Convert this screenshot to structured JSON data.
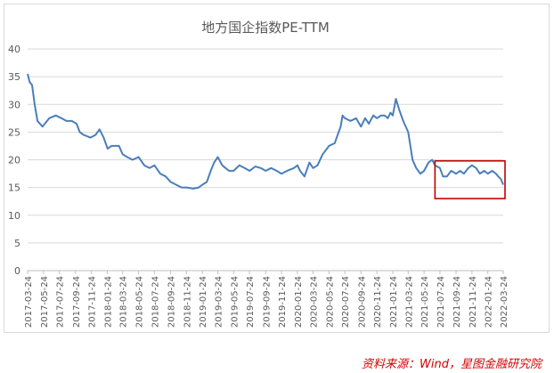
{
  "chart_data": {
    "type": "line",
    "title": "地方国企指数PE-TTM",
    "xlabel": "",
    "ylabel": "",
    "ylim": [
      0,
      40
    ],
    "yticks": [
      0,
      5,
      10,
      15,
      20,
      25,
      30,
      35,
      40
    ],
    "grid": true,
    "legend": "none",
    "line_color": "#4a7ebb",
    "highlight_color": "#c00000",
    "x_tick_labels": [
      "2017-03-24",
      "2017-05-24",
      "2017-07-24",
      "2017-09-24",
      "2017-11-24",
      "2018-01-24",
      "2018-03-24",
      "2018-05-24",
      "2018-07-24",
      "2018-09-24",
      "2018-11-24",
      "2019-01-24",
      "2019-03-24",
      "2019-05-24",
      "2019-07-24",
      "2019-09-24",
      "2019-11-24",
      "2020-01-24",
      "2020-03-24",
      "2020-05-24",
      "2020-07-24",
      "2020-09-24",
      "2020-11-24",
      "2021-01-24",
      "2021-03-24",
      "2021-05-24",
      "2021-07-24",
      "2021-09-24",
      "2021-11-24",
      "2022-01-24",
      "2022-03-24"
    ],
    "x": [
      "2017-03-24",
      "2017-04-01",
      "2017-04-10",
      "2017-04-20",
      "2017-05-01",
      "2017-05-20",
      "2017-06-15",
      "2017-07-10",
      "2017-08-01",
      "2017-08-20",
      "2017-09-10",
      "2017-09-28",
      "2017-10-10",
      "2017-10-25",
      "2017-11-20",
      "2017-12-10",
      "2017-12-25",
      "2018-01-10",
      "2018-01-25",
      "2018-02-09",
      "2018-03-10",
      "2018-03-24",
      "2018-04-10",
      "2018-05-01",
      "2018-05-24",
      "2018-06-15",
      "2018-07-05",
      "2018-07-24",
      "2018-08-15",
      "2018-09-05",
      "2018-09-24",
      "2018-10-15",
      "2018-11-05",
      "2018-11-24",
      "2018-12-20",
      "2019-01-10",
      "2019-01-24",
      "2019-02-10",
      "2019-02-25",
      "2019-03-10",
      "2019-03-24",
      "2019-04-10",
      "2019-05-06",
      "2019-05-24",
      "2019-06-15",
      "2019-07-05",
      "2019-07-24",
      "2019-08-15",
      "2019-09-05",
      "2019-09-24",
      "2019-10-15",
      "2019-11-05",
      "2019-11-24",
      "2019-12-15",
      "2020-01-10",
      "2020-01-24",
      "2020-02-03",
      "2020-02-20",
      "2020-03-10",
      "2020-03-24",
      "2020-04-10",
      "2020-04-30",
      "2020-05-24",
      "2020-06-15",
      "2020-06-30",
      "2020-07-08",
      "2020-07-15",
      "2020-07-24",
      "2020-08-15",
      "2020-09-05",
      "2020-09-24",
      "2020-10-10",
      "2020-10-24",
      "2020-11-10",
      "2020-11-24",
      "2020-12-10",
      "2020-12-24",
      "2021-01-05",
      "2021-01-15",
      "2021-01-24",
      "2021-02-05",
      "2021-02-18",
      "2021-03-05",
      "2021-03-24",
      "2021-04-10",
      "2021-04-24",
      "2021-05-10",
      "2021-05-24",
      "2021-06-10",
      "2021-06-24",
      "2021-07-05",
      "2021-07-24",
      "2021-08-05",
      "2021-08-20",
      "2021-09-05",
      "2021-09-24",
      "2021-10-10",
      "2021-10-24",
      "2021-11-10",
      "2021-11-24",
      "2021-12-10",
      "2021-12-24",
      "2022-01-10",
      "2022-01-24",
      "2022-02-10",
      "2022-02-24",
      "2022-03-05",
      "2022-03-15",
      "2022-03-24"
    ],
    "series": [
      {
        "values": [
          35.5,
          34,
          33.5,
          30,
          27,
          26,
          27.5,
          28,
          27.5,
          27,
          27,
          26.5,
          25,
          24.5,
          24,
          24.5,
          25.5,
          24,
          22,
          22.5,
          22.5,
          21,
          20.5,
          20,
          20.5,
          19,
          18.5,
          19,
          17.5,
          17,
          16,
          15.5,
          15,
          15,
          14.8,
          15,
          15.5,
          16,
          18,
          19.5,
          20.5,
          19,
          18,
          18,
          19,
          18.5,
          18,
          18.8,
          18.5,
          18,
          18.5,
          18,
          17.5,
          18,
          18.5,
          19,
          18,
          17,
          19.5,
          18.5,
          19,
          21,
          22.5,
          23,
          25,
          26,
          28,
          27.5,
          27,
          27.5,
          26,
          27.5,
          26.5,
          28,
          27.5,
          28,
          28,
          27.5,
          28.5,
          28,
          31,
          29,
          27,
          25,
          20,
          18.5,
          17.5,
          18,
          19.5,
          20,
          19,
          18.5,
          17,
          17,
          18,
          17.5,
          18,
          17.5,
          18.5,
          19,
          18.5,
          17.5,
          18,
          17.5,
          18,
          17.5,
          17,
          16.5,
          15.5
        ]
      }
    ],
    "highlight_box": {
      "x_start": "2021-07-05",
      "x_end": "2022-03-24",
      "y_low": 13,
      "y_high": 19.8
    }
  },
  "source": "资料来源：Wind，星图金融研究院"
}
